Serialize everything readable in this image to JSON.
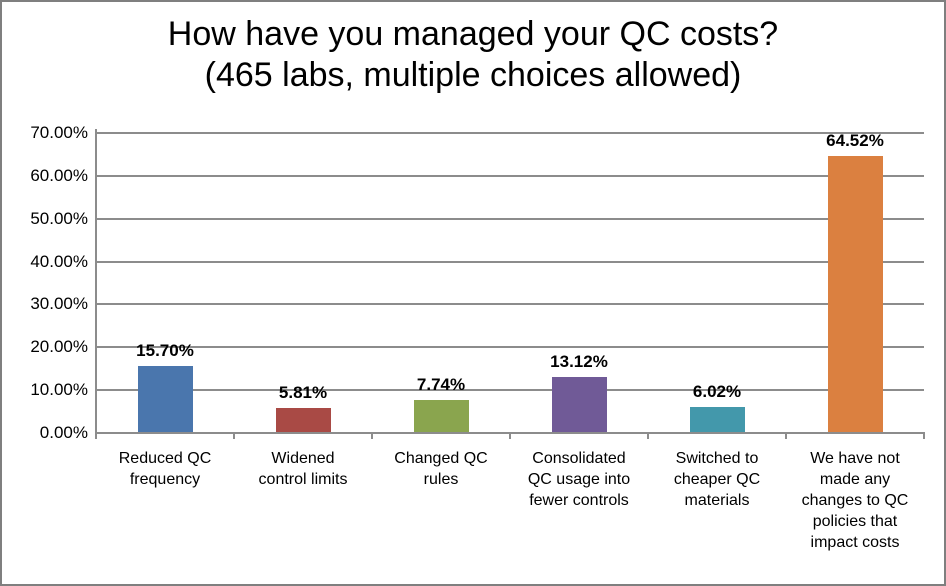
{
  "chart_data": {
    "type": "bar",
    "title": "How have you managed your QC costs?",
    "subtitle": "(465 labs, multiple choices allowed)",
    "categories": [
      "Reduced QC frequency",
      "Widened control limits",
      "Changed QC rules",
      "Consolidated QC usage into fewer controls",
      "Switched to cheaper QC materials",
      "We have not made any changes to QC policies that impact costs"
    ],
    "values": [
      15.7,
      5.81,
      7.74,
      13.12,
      6.02,
      64.52
    ],
    "value_labels": [
      "15.70%",
      "5.81%",
      "7.74%",
      "13.12%",
      "6.02%",
      "64.52%"
    ],
    "bar_colors": [
      "#4a76ad",
      "#a94a45",
      "#8aa54e",
      "#705a97",
      "#4398ab",
      "#db8040"
    ],
    "xlabel": "",
    "ylabel": "",
    "ylim": [
      0,
      70
    ],
    "y_tick_labels": [
      "0.00%",
      "10.00%",
      "20.00%",
      "30.00%",
      "40.00%",
      "50.00%",
      "60.00%",
      "70.00%"
    ],
    "y_tick_values": [
      0,
      10,
      20,
      30,
      40,
      50,
      60,
      70
    ],
    "grid": true,
    "legend": false,
    "gridline_color": "#8c8c8c",
    "axis_color": "#8c8c8c",
    "label_color": "#000000",
    "background_color": "#ffffff",
    "border_color": "#7f7f7f"
  }
}
